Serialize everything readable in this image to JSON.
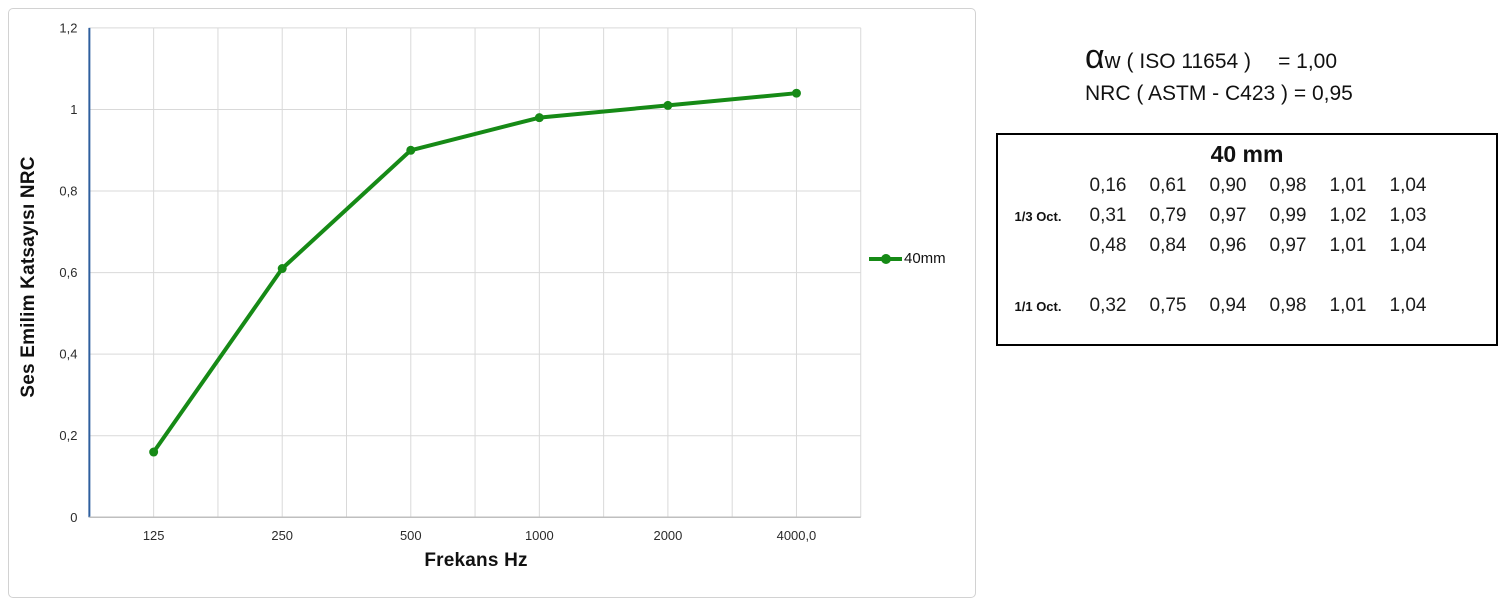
{
  "chart_data": {
    "type": "line",
    "categories": [
      "125",
      "250",
      "500",
      "1000",
      "2000",
      "4000,0"
    ],
    "series": [
      {
        "name": "40mm",
        "values": [
          0.16,
          0.61,
          0.9,
          0.98,
          1.01,
          1.04
        ],
        "color": "#168a16"
      }
    ],
    "xlabel": "Frekans Hz",
    "ylabel": "Ses Emilim Katsayısı NRC",
    "ylim": [
      0,
      1.2
    ],
    "ytick_step": 0.2,
    "ytick_labels": [
      "0",
      "0,2",
      "0,4",
      "0,6",
      "0,8",
      "1",
      "1,2"
    ],
    "grid": true,
    "legend_position": "right",
    "colors": {
      "grid": "#d9d9d9",
      "y_axis": "#2e5f9e",
      "x_axis": "#bfbfbf",
      "tick_text": "#2b2b2b"
    }
  },
  "results": {
    "alpha_symbol": "α",
    "alpha_sub": "w",
    "alpha_std": "( ISO 11654 )",
    "alpha_eq": "= 1,00",
    "nrc_line": "NRC ( ASTM - C423 ) = 0,95"
  },
  "table": {
    "title": "40 mm",
    "rows": [
      {
        "label": "",
        "values": [
          "0,16",
          "0,61",
          "0,90",
          "0,98",
          "1,01",
          "1,04"
        ]
      },
      {
        "label": "1/3 Oct.",
        "values": [
          "0,31",
          "0,79",
          "0,97",
          "0,99",
          "1,02",
          "1,03"
        ]
      },
      {
        "label": "",
        "values": [
          "0,48",
          "0,84",
          "0,96",
          "0,97",
          "1,01",
          "1,04"
        ]
      },
      {
        "spacer": true
      },
      {
        "label": "1/1 Oct.",
        "values": [
          "0,32",
          "0,75",
          "0,94",
          "0,98",
          "1,01",
          "1,04"
        ]
      }
    ]
  }
}
